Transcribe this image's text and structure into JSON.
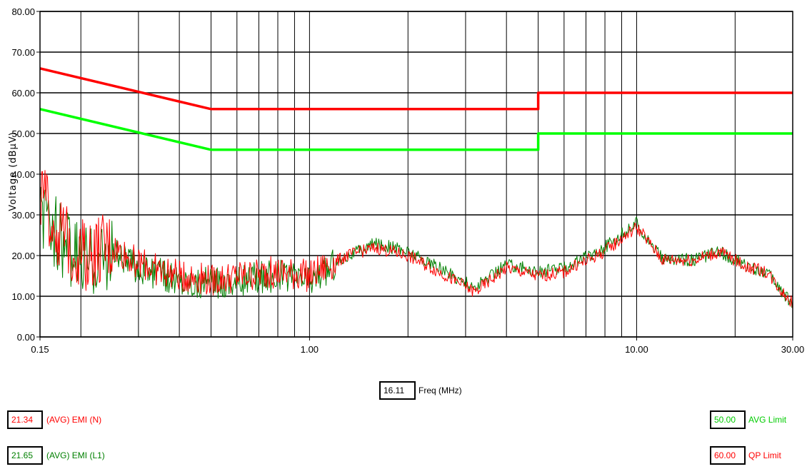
{
  "chart_data": {
    "type": "line",
    "ylabel": "Voltage (dBμV)",
    "xlabel": "Freq (MHz)",
    "xscale": "log",
    "xlim": [
      0.15,
      30
    ],
    "ylim": [
      0,
      80
    ],
    "grid": true,
    "y_ticks": [
      "0.00",
      "10.00",
      "20.00",
      "30.00",
      "40.00",
      "50.00",
      "60.00",
      "70.00",
      "80.00"
    ],
    "x_ticks": [
      "0.15",
      "1.00",
      "10.00",
      "30.00"
    ],
    "series": [
      {
        "name": "QP Limit",
        "color": "#ff0000",
        "x": [
          0.15,
          0.5,
          5,
          5,
          30
        ],
        "y": [
          66,
          56,
          56,
          60,
          60
        ]
      },
      {
        "name": "AVG Limit",
        "color": "#00ff00",
        "x": [
          0.15,
          0.5,
          5,
          5,
          30
        ],
        "y": [
          56,
          46,
          46,
          50,
          50
        ]
      },
      {
        "name": "(AVG) EMI (N)",
        "color": "#ff0000",
        "x": [
          0.15,
          0.17,
          0.2,
          0.25,
          0.3,
          0.4,
          0.5,
          0.6,
          0.8,
          1.0,
          1.3,
          1.6,
          2.0,
          2.5,
          3.2,
          4.0,
          5.0,
          6.0,
          8.0,
          10.0,
          12.0,
          15.0,
          18.0,
          22.0,
          25.0,
          28.0,
          30.0
        ],
        "y": [
          35,
          26,
          20,
          22,
          18,
          15,
          14,
          15,
          16,
          15,
          20,
          22,
          20,
          16,
          11,
          17,
          15,
          16,
          21,
          27,
          19,
          19,
          21,
          17,
          16,
          11,
          8
        ]
      },
      {
        "name": "(AVG) EMI (L1)",
        "color": "#008000",
        "x": [
          0.15,
          0.17,
          0.2,
          0.25,
          0.3,
          0.4,
          0.5,
          0.6,
          0.8,
          1.0,
          1.3,
          1.6,
          2.0,
          2.5,
          3.2,
          4.0,
          5.0,
          6.0,
          8.0,
          10.0,
          12.0,
          15.0,
          18.0,
          22.0,
          25.0,
          28.0,
          30.0
        ],
        "y": [
          30,
          25,
          18,
          21,
          17,
          14,
          13,
          14,
          15,
          14,
          20,
          23,
          21,
          17,
          12,
          18,
          16,
          17,
          22,
          28,
          19,
          19,
          21,
          17,
          16,
          11,
          8
        ]
      }
    ]
  },
  "cursor": {
    "value": "16.11",
    "label": "Freq (MHz)"
  },
  "legend": {
    "left": [
      {
        "value": "21.34",
        "label": "(AVG) EMI (N)",
        "color": "#ff0000"
      },
      {
        "value": "21.65",
        "label": "(AVG) EMI (L1)",
        "color": "#008000"
      }
    ],
    "right": [
      {
        "value": "50.00",
        "label": "AVG Limit",
        "color": "#00ff00"
      },
      {
        "value": "60.00",
        "label": "QP Limit",
        "color": "#ff0000"
      }
    ]
  }
}
